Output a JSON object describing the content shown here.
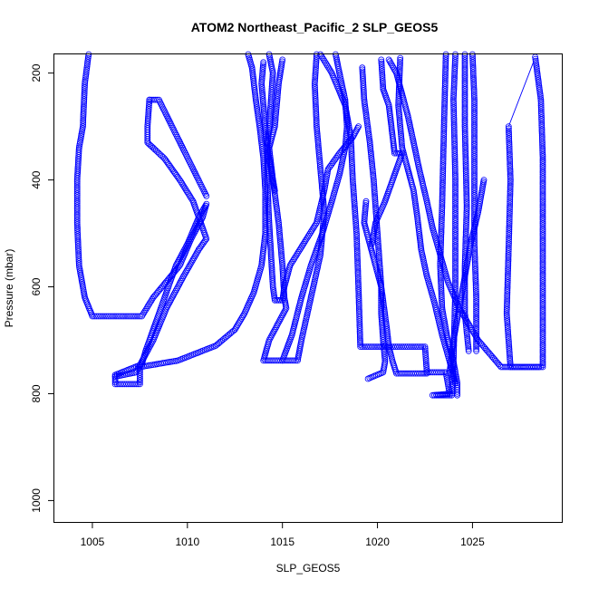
{
  "chart_data": {
    "type": "scatter",
    "title": "ATOM2 Northeast_Pacific_2 SLP_GEOS5",
    "xlabel": "SLP_GEOS5",
    "ylabel": "Pressure (mbar)",
    "xlim": [
      1003.0,
      1029.7
    ],
    "ylim": [
      165,
      1040
    ],
    "y_reversed": true,
    "x_ticks": [
      1005,
      1010,
      1015,
      1020,
      1025
    ],
    "x_tick_labels": [
      "1005",
      "1010",
      "1015",
      "1020",
      "1025"
    ],
    "y_ticks": [
      200,
      400,
      600,
      800,
      1000
    ],
    "y_tick_labels": [
      "200",
      "400",
      "600",
      "800",
      "1000"
    ],
    "grid": false,
    "marker": "open-circle",
    "color": "#0000ff",
    "series": [
      {
        "points": [
          [
            1004.8,
            165
          ],
          [
            1004.6,
            220
          ],
          [
            1004.5,
            300
          ],
          [
            1004.3,
            340
          ],
          [
            1004.2,
            400
          ],
          [
            1004.2,
            480
          ],
          [
            1004.3,
            560
          ],
          [
            1004.6,
            620
          ],
          [
            1005.0,
            655
          ],
          [
            1007.6,
            655
          ],
          [
            1008.2,
            620
          ],
          [
            1008.9,
            590
          ],
          [
            1009.6,
            560
          ],
          [
            1010.2,
            510
          ],
          [
            1010.8,
            470
          ],
          [
            1011.0,
            445
          ],
          [
            1010.6,
            470
          ],
          [
            1010.0,
            520
          ],
          [
            1009.4,
            560
          ],
          [
            1008.6,
            640
          ],
          [
            1008.0,
            700
          ],
          [
            1007.8,
            720
          ],
          [
            1007.6,
            745
          ],
          [
            1006.2,
            765
          ],
          [
            1006.2,
            782
          ],
          [
            1007.5,
            782
          ],
          [
            1007.5,
            750
          ],
          [
            1009.5,
            738
          ],
          [
            1011.5,
            710
          ],
          [
            1012.5,
            680
          ],
          [
            1013.0,
            650
          ],
          [
            1013.5,
            610
          ],
          [
            1013.9,
            560
          ],
          [
            1014.1,
            500
          ],
          [
            1014.1,
            420
          ],
          [
            1014.0,
            360
          ],
          [
            1013.8,
            300
          ],
          [
            1013.6,
            250
          ],
          [
            1013.4,
            190
          ],
          [
            1013.2,
            165
          ]
        ]
      },
      {
        "points": [
          [
            1008.0,
            250
          ],
          [
            1008.5,
            250
          ],
          [
            1011.0,
            430
          ]
        ]
      },
      {
        "points": [
          [
            1008.0,
            250
          ],
          [
            1007.9,
            300
          ],
          [
            1007.9,
            330
          ],
          [
            1008.8,
            360
          ],
          [
            1009.6,
            400
          ],
          [
            1010.3,
            440
          ],
          [
            1010.8,
            490
          ],
          [
            1011.0,
            510
          ],
          [
            1010.6,
            530
          ],
          [
            1009.8,
            580
          ],
          [
            1008.9,
            640
          ],
          [
            1008.2,
            700
          ],
          [
            1007.3,
            760
          ],
          [
            1006.2,
            768
          ]
        ]
      },
      {
        "points": [
          [
            1014.3,
            165
          ],
          [
            1014.5,
            200
          ],
          [
            1014.4,
            250
          ],
          [
            1014.3,
            300
          ],
          [
            1014.2,
            340
          ],
          [
            1014.2,
            400
          ],
          [
            1014.3,
            480
          ],
          [
            1014.4,
            540
          ],
          [
            1014.5,
            600
          ],
          [
            1014.6,
            625
          ],
          [
            1015.0,
            625
          ],
          [
            1015.1,
            600
          ],
          [
            1015.4,
            560
          ],
          [
            1016.1,
            520
          ],
          [
            1016.8,
            480
          ],
          [
            1017.2,
            420
          ],
          [
            1017.4,
            380
          ],
          [
            1018.0,
            350
          ],
          [
            1018.7,
            320
          ],
          [
            1019.0,
            300
          ]
        ]
      },
      {
        "points": [
          [
            1014.0,
            180
          ],
          [
            1013.9,
            220
          ],
          [
            1014.0,
            260
          ],
          [
            1014.1,
            300
          ],
          [
            1014.2,
            340
          ],
          [
            1014.4,
            380
          ],
          [
            1014.6,
            420
          ]
        ]
      },
      {
        "points": [
          [
            1015.0,
            175
          ],
          [
            1014.8,
            220
          ],
          [
            1014.6,
            300
          ],
          [
            1014.3,
            340
          ],
          [
            1014.5,
            400
          ],
          [
            1014.8,
            480
          ],
          [
            1015.0,
            560
          ],
          [
            1015.1,
            620
          ],
          [
            1015.2,
            640
          ],
          [
            1014.3,
            700
          ],
          [
            1014.0,
            738
          ],
          [
            1015.0,
            738
          ],
          [
            1015.5,
            690
          ],
          [
            1016.0,
            620
          ],
          [
            1016.5,
            560
          ],
          [
            1017.1,
            500
          ],
          [
            1017.6,
            440
          ],
          [
            1018.0,
            390
          ],
          [
            1018.3,
            340
          ],
          [
            1018.4,
            300
          ],
          [
            1018.3,
            250
          ],
          [
            1018.0,
            200
          ],
          [
            1017.8,
            165
          ]
        ]
      },
      {
        "points": [
          [
            1016.8,
            165
          ],
          [
            1016.7,
            220
          ],
          [
            1016.8,
            300
          ],
          [
            1017.0,
            380
          ],
          [
            1017.2,
            460
          ],
          [
            1017.0,
            540
          ],
          [
            1016.5,
            620
          ],
          [
            1016.0,
            700
          ],
          [
            1015.8,
            738
          ],
          [
            1015.0,
            738
          ]
        ]
      },
      {
        "points": [
          [
            1017.0,
            165
          ],
          [
            1017.6,
            200
          ],
          [
            1018.3,
            260
          ],
          [
            1018.6,
            320
          ],
          [
            1018.7,
            400
          ],
          [
            1018.9,
            500
          ],
          [
            1019.0,
            600
          ],
          [
            1019.1,
            712
          ],
          [
            1022.5,
            712
          ],
          [
            1022.6,
            760
          ],
          [
            1023.6,
            760
          ],
          [
            1023.8,
            800
          ],
          [
            1022.9,
            803
          ],
          [
            1023.9,
            803
          ],
          [
            1024.0,
            740
          ],
          [
            1024.1,
            600
          ],
          [
            1024.1,
            400
          ],
          [
            1024.0,
            250
          ],
          [
            1024.1,
            165
          ]
        ]
      },
      {
        "points": [
          [
            1019.2,
            190
          ],
          [
            1019.3,
            250
          ],
          [
            1019.6,
            330
          ],
          [
            1019.8,
            400
          ],
          [
            1020.0,
            500
          ],
          [
            1020.2,
            600
          ],
          [
            1020.5,
            680
          ],
          [
            1020.6,
            712
          ],
          [
            1020.8,
            740
          ],
          [
            1021.0,
            762
          ],
          [
            1022.6,
            762
          ]
        ]
      },
      {
        "points": [
          [
            1019.4,
            440
          ],
          [
            1019.3,
            480
          ],
          [
            1019.6,
            520
          ],
          [
            1019.9,
            560
          ],
          [
            1020.2,
            600
          ],
          [
            1020.2,
            650
          ],
          [
            1020.3,
            700
          ],
          [
            1020.4,
            740
          ],
          [
            1020.3,
            760
          ],
          [
            1019.5,
            772
          ]
        ]
      },
      {
        "points": [
          [
            1020.2,
            175
          ],
          [
            1020.3,
            230
          ],
          [
            1020.6,
            260
          ],
          [
            1020.8,
            320
          ],
          [
            1020.9,
            350
          ],
          [
            1021.3,
            350
          ],
          [
            1021.0,
            380
          ],
          [
            1020.4,
            440
          ],
          [
            1019.9,
            480
          ],
          [
            1019.7,
            520
          ]
        ]
      },
      {
        "points": [
          [
            1020.6,
            175
          ],
          [
            1021.0,
            200
          ],
          [
            1021.3,
            240
          ],
          [
            1021.6,
            280
          ],
          [
            1021.9,
            330
          ],
          [
            1022.2,
            380
          ],
          [
            1022.6,
            440
          ],
          [
            1022.9,
            490
          ],
          [
            1023.3,
            540
          ],
          [
            1023.7,
            590
          ],
          [
            1024.3,
            640
          ],
          [
            1025.3,
            700
          ],
          [
            1026.5,
            750
          ],
          [
            1028.5,
            750
          ]
        ]
      },
      {
        "points": [
          [
            1021.2,
            172
          ],
          [
            1021.1,
            260
          ],
          [
            1021.3,
            340
          ],
          [
            1021.6,
            380
          ],
          [
            1021.9,
            420
          ],
          [
            1022.1,
            470
          ],
          [
            1022.3,
            530
          ],
          [
            1022.6,
            580
          ],
          [
            1023.0,
            630
          ],
          [
            1023.4,
            690
          ],
          [
            1023.8,
            740
          ],
          [
            1024.1,
            780
          ]
        ]
      },
      {
        "points": [
          [
            1023.6,
            165
          ],
          [
            1023.5,
            300
          ],
          [
            1023.4,
            450
          ],
          [
            1023.3,
            560
          ],
          [
            1023.4,
            640
          ],
          [
            1023.7,
            700
          ],
          [
            1024.0,
            740
          ],
          [
            1024.2,
            780
          ],
          [
            1024.2,
            803
          ]
        ]
      },
      {
        "points": [
          [
            1024.6,
            165
          ],
          [
            1024.6,
            300
          ],
          [
            1024.7,
            450
          ],
          [
            1024.6,
            560
          ],
          [
            1024.6,
            650
          ],
          [
            1024.8,
            720
          ]
        ]
      },
      {
        "points": [
          [
            1025.0,
            165
          ],
          [
            1025.1,
            250
          ],
          [
            1025.1,
            400
          ],
          [
            1025.1,
            520
          ],
          [
            1025.2,
            620
          ],
          [
            1025.2,
            720
          ]
        ]
      },
      {
        "points": [
          [
            1025.6,
            400
          ],
          [
            1025.3,
            460
          ],
          [
            1024.9,
            520
          ],
          [
            1024.6,
            580
          ],
          [
            1024.3,
            640
          ],
          [
            1024.0,
            700
          ],
          [
            1023.8,
            760
          ]
        ]
      },
      {
        "points": [
          [
            1028.3,
            170
          ],
          [
            1028.6,
            250
          ],
          [
            1028.7,
            360
          ],
          [
            1028.7,
            500
          ],
          [
            1028.7,
            640
          ],
          [
            1028.7,
            750
          ],
          [
            1027.0,
            750
          ],
          [
            1026.8,
            650
          ],
          [
            1026.9,
            530
          ],
          [
            1027.0,
            400
          ],
          [
            1026.9,
            300
          ]
        ]
      },
      {
        "points": [
          [
            1026.9,
            300
          ],
          [
            1028.2,
            180
          ]
        ]
      }
    ]
  }
}
